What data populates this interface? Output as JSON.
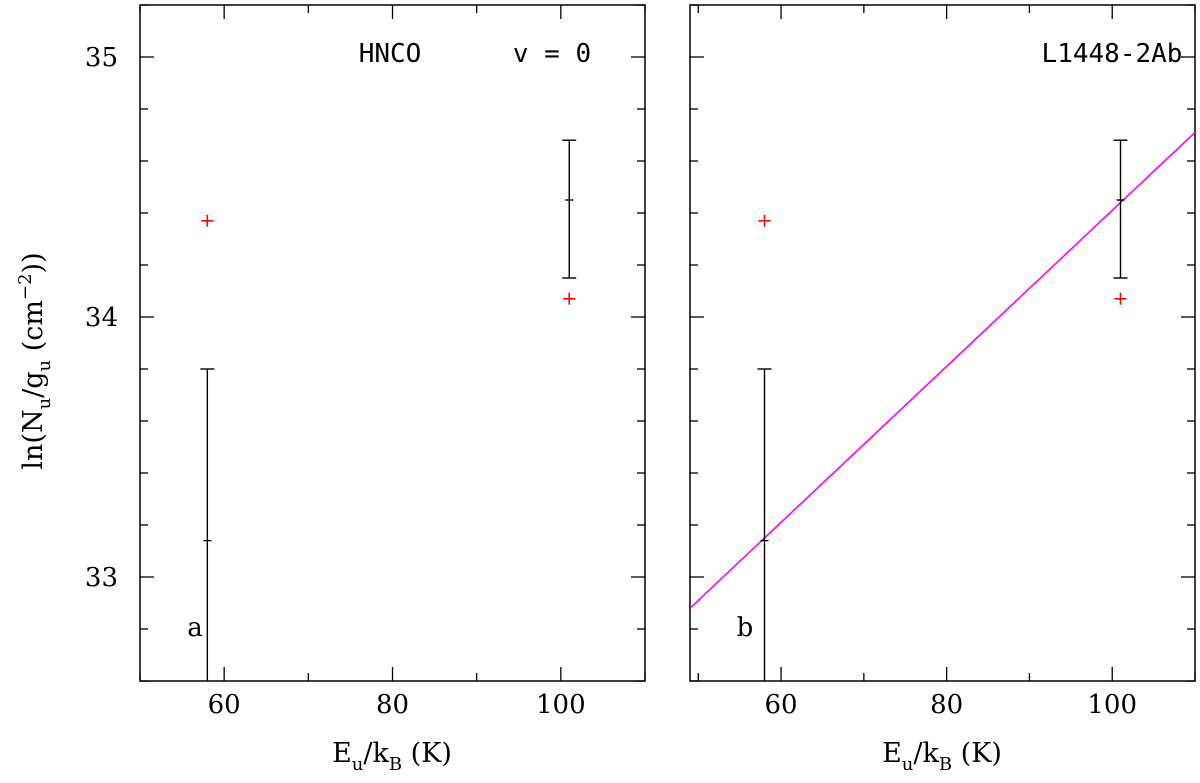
{
  "colors": {
    "axis": "#000000",
    "model_marker": "#ff0000",
    "fit_line": "#ff00ff"
  },
  "axes": {
    "ylabel": {
      "prefix": "ln(N",
      "sub1": "u",
      "mid": "/g",
      "sub2": "u",
      "unit_open": " (cm",
      "sup": "−2",
      "close": "))"
    },
    "xlabel": {
      "e": "E",
      "sub1": "u",
      "slash": "/k",
      "sub2": "B",
      "unit": " (K)"
    }
  },
  "chart_data": [
    {
      "type": "scatter",
      "panel_label": "a",
      "annotations": [
        "HNCO",
        "v = 0"
      ],
      "xlim": [
        50,
        110
      ],
      "ylim": [
        32.6,
        35.2
      ],
      "x_ticks": [
        60,
        80,
        100
      ],
      "x_tick_labels": [
        "60",
        "80",
        "100"
      ],
      "y_ticks": [
        33,
        34,
        35
      ],
      "y_tick_labels": [
        "33",
        "34",
        "35"
      ],
      "observed": [
        {
          "x": 58,
          "y": 33.14,
          "yerr_low": 32.6,
          "yerr_high": 33.8
        },
        {
          "x": 101,
          "y": 34.45,
          "yerr_low": 34.15,
          "yerr_high": 34.68
        }
      ],
      "model": [
        {
          "x": 58,
          "y": 34.37
        },
        {
          "x": 101,
          "y": 34.07
        }
      ],
      "fit": null
    },
    {
      "type": "scatter",
      "panel_label": "b",
      "annotations": [
        "L1448-2Ab"
      ],
      "xlim": [
        49,
        110
      ],
      "ylim": [
        32.6,
        35.2
      ],
      "x_ticks": [
        60,
        80,
        100
      ],
      "x_tick_labels": [
        "60",
        "80",
        "100"
      ],
      "y_ticks": [
        33,
        34,
        35
      ],
      "y_tick_labels": [],
      "observed": [
        {
          "x": 58,
          "y": 33.14,
          "yerr_low": 32.6,
          "yerr_high": 33.8
        },
        {
          "x": 101,
          "y": 34.45,
          "yerr_low": 34.15,
          "yerr_high": 34.68
        }
      ],
      "model": [
        {
          "x": 58,
          "y": 34.37
        },
        {
          "x": 101,
          "y": 34.07
        }
      ],
      "fit": {
        "x": [
          49,
          110
        ],
        "y": [
          32.88,
          34.71
        ]
      }
    }
  ]
}
